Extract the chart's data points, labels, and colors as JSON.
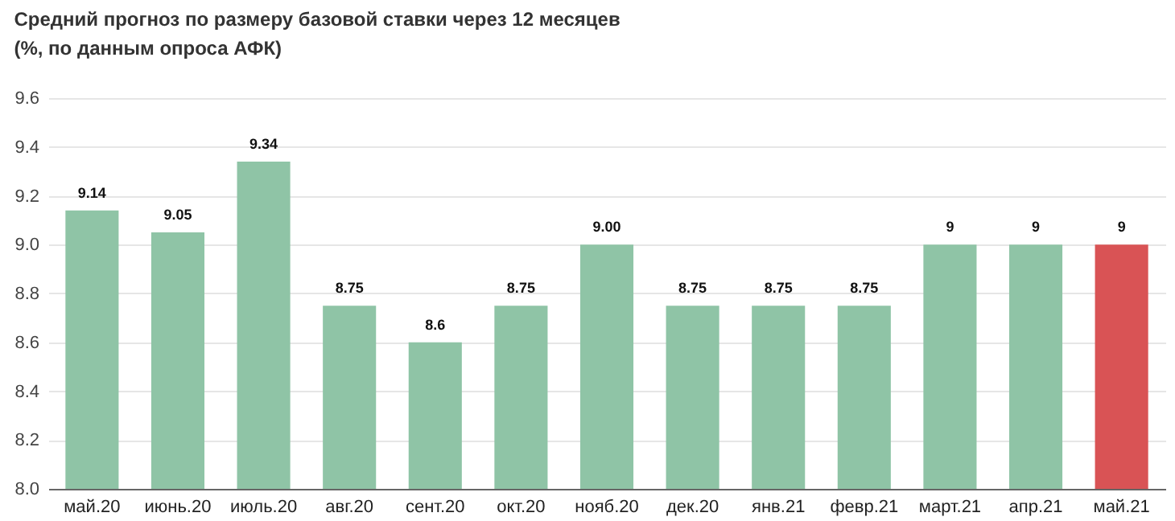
{
  "chart_data": {
    "type": "bar",
    "title": "Средний прогноз по размеру базовой ставки через 12 месяцев",
    "subtitle": "(%, по данным опроса АФК)",
    "categories": [
      "май.20",
      "июнь.20",
      "июль.20",
      "авг.20",
      "сент.20",
      "окт.20",
      "нояб.20",
      "дек.20",
      "янв.21",
      "февр.21",
      "март.21",
      "апр.21",
      "май.21"
    ],
    "values": [
      9.14,
      9.05,
      9.34,
      8.75,
      8.6,
      8.75,
      9.0,
      8.75,
      8.75,
      8.75,
      9,
      9,
      9
    ],
    "value_labels": [
      "9.14",
      "9.05",
      "9.34",
      "8.75",
      "8.6",
      "8.75",
      "9.00",
      "8.75",
      "8.75",
      "8.75",
      "9",
      "9",
      "9"
    ],
    "colors": [
      "#8fc4a6",
      "#8fc4a6",
      "#8fc4a6",
      "#8fc4a6",
      "#8fc4a6",
      "#8fc4a6",
      "#8fc4a6",
      "#8fc4a6",
      "#8fc4a6",
      "#8fc4a6",
      "#8fc4a6",
      "#8fc4a6",
      "#d95355"
    ],
    "ylim": [
      8.0,
      9.6
    ],
    "yticks": [
      {
        "value": 8.0,
        "label": "8.0"
      },
      8.2,
      8.4,
      8.6,
      8.8,
      {
        "value": 9.0,
        "label": "9.0"
      },
      9.2,
      9.4,
      9.6
    ],
    "grid": "y",
    "legend": false
  }
}
